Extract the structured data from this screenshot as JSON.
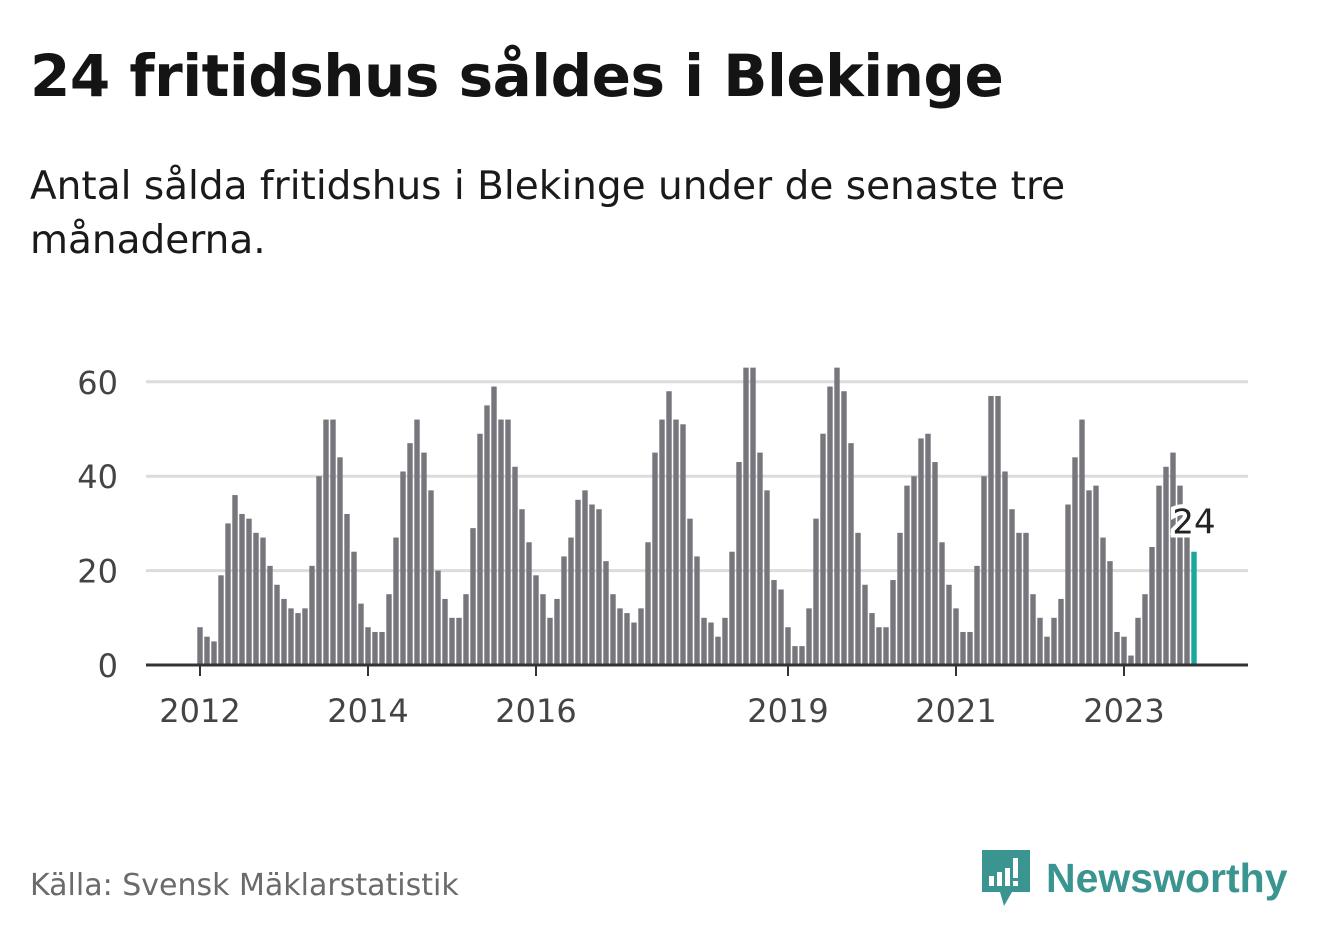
{
  "header": {
    "title": "24 fritidshus såldes i Blekinge",
    "subtitle": "Antal sålda fritidshus i Blekinge under de senaste tre månaderna."
  },
  "footer": {
    "source": "Källa: Svensk Mäklarstatistik",
    "brand": "Newsworthy"
  },
  "colors": {
    "bar": "#76767c",
    "highlight": "#1ba79b",
    "grid": "#dcdcdc",
    "axis": "#333333",
    "brand": "#3a9590"
  },
  "chart_data": {
    "type": "bar",
    "start": "2012-01",
    "frequency": "monthly",
    "values": [
      8,
      6,
      5,
      19,
      30,
      36,
      32,
      31,
      28,
      27,
      21,
      17,
      14,
      12,
      11,
      12,
      21,
      40,
      52,
      52,
      44,
      32,
      24,
      13,
      8,
      7,
      7,
      15,
      27,
      41,
      47,
      52,
      45,
      37,
      20,
      14,
      10,
      10,
      15,
      29,
      49,
      55,
      59,
      52,
      52,
      42,
      33,
      26,
      19,
      15,
      10,
      14,
      23,
      27,
      35,
      37,
      34,
      33,
      22,
      15,
      12,
      11,
      9,
      12,
      26,
      45,
      52,
      58,
      52,
      51,
      31,
      23,
      10,
      9,
      6,
      10,
      24,
      43,
      63,
      63,
      45,
      37,
      18,
      16,
      8,
      4,
      4,
      12,
      31,
      49,
      59,
      63,
      58,
      47,
      28,
      17,
      11,
      8,
      8,
      18,
      28,
      38,
      40,
      48,
      49,
      43,
      26,
      17,
      12,
      7,
      7,
      21,
      40,
      57,
      57,
      41,
      33,
      28,
      28,
      15,
      10,
      6,
      10,
      14,
      34,
      44,
      52,
      37,
      38,
      27,
      22,
      7,
      6,
      2,
      10,
      15,
      25,
      38,
      42,
      45,
      38,
      28,
      24
    ],
    "x_tick_labels": [
      "2012",
      "2014",
      "2016",
      "2019",
      "2021",
      "2023"
    ],
    "y_ticks": [
      0,
      20,
      40,
      60
    ],
    "ylim": [
      0,
      63
    ],
    "highlight_label": "24",
    "grid": true
  }
}
